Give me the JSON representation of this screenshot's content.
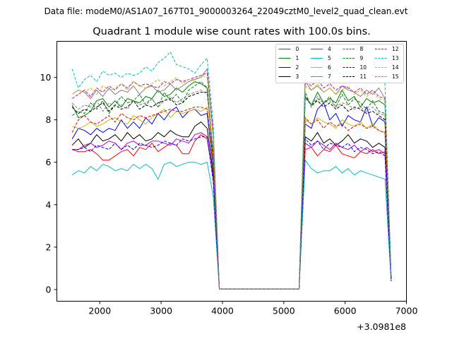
{
  "supertitle": "Data file: modeM0/AS1A07_167T01_9000003264_22049cztM0_level2_quad_clean.evt",
  "chart_data": {
    "type": "line",
    "title": "Quadrant 1 module wise count rates with 100.0s bins.",
    "xlabel": "",
    "ylabel": "",
    "x_offset_label": "+3.0981e8",
    "xlim": [
      1300,
      7000
    ],
    "ylim": [
      -0.55,
      11.7
    ],
    "xticks": [
      2000,
      3000,
      4000,
      5000,
      6000,
      7000
    ],
    "xtick_labels": [
      "2000",
      "3000",
      "4000",
      "5000",
      "6000",
      "7000"
    ],
    "yticks": [
      0,
      2,
      4,
      6,
      8,
      10
    ],
    "ytick_labels": [
      "0",
      "2",
      "4",
      "6",
      "8",
      "10"
    ],
    "grid": false,
    "legend_position": "top-right",
    "x_segment1": [
      1550,
      1650,
      1750,
      1850,
      1950,
      2050,
      2150,
      2250,
      2350,
      2450,
      2550,
      2650,
      2750,
      2850,
      2950,
      3050,
      3150,
      3250,
      3350,
      3450,
      3550,
      3650,
      3750,
      3850,
      3950
    ],
    "x_segment2": [
      5250,
      5350,
      5450,
      5550,
      5650,
      5750,
      5850,
      5950,
      6050,
      6150,
      6250,
      6350,
      6450,
      6550,
      6650,
      6750
    ],
    "gap_x": [
      4050,
      4150,
      4250,
      4350,
      4450,
      4550,
      4650,
      4750,
      4850,
      4950,
      5050,
      5150
    ],
    "series": [
      {
        "name": "0",
        "color": "#ff0000",
        "dash": "solid",
        "seg1": [
          6.6,
          6.5,
          6.5,
          6.6,
          6.4,
          6.1,
          6.1,
          6.3,
          6.5,
          6.6,
          6.3,
          6.7,
          6.6,
          6.9,
          6.5,
          6.7,
          6.9,
          6.8,
          6.4,
          6.4,
          7.0,
          7.3,
          7.1,
          5.3,
          0.02
        ],
        "seg2": [
          0.02,
          6.6,
          6.7,
          6.3,
          6.6,
          6.5,
          6.8,
          6.4,
          6.3,
          6.2,
          6.5,
          6.4,
          6.6,
          6.4,
          6.5,
          0.5
        ]
      },
      {
        "name": "1",
        "color": "#008000",
        "dash": "solid",
        "seg1": [
          8.7,
          8.1,
          8.2,
          8.4,
          8.9,
          9.0,
          8.6,
          8.9,
          8.6,
          9.0,
          8.9,
          8.8,
          9.1,
          9.0,
          9.4,
          9.1,
          9.2,
          9.5,
          9.3,
          9.6,
          9.8,
          9.7,
          9.5,
          6.2,
          0.02
        ],
        "seg2": [
          0.02,
          9.1,
          8.7,
          9.3,
          8.8,
          9.0,
          8.8,
          9.4,
          8.9,
          9.1,
          8.6,
          9.0,
          8.8,
          8.9,
          8.7,
          0.6
        ]
      },
      {
        "name": "2",
        "color": "#0000ff",
        "dash": "solid",
        "seg1": [
          7.1,
          7.6,
          7.5,
          7.3,
          7.6,
          7.4,
          7.6,
          7.5,
          8.0,
          7.6,
          7.9,
          7.6,
          8.1,
          7.8,
          8.3,
          8.0,
          8.4,
          8.6,
          8.1,
          8.4,
          8.5,
          8.2,
          8.3,
          5.8,
          0.02
        ],
        "seg2": [
          0.02,
          7.8,
          7.6,
          8.5,
          8.8,
          8.0,
          8.3,
          7.7,
          8.2,
          8.0,
          7.9,
          8.6,
          7.7,
          8.1,
          7.9,
          0.4
        ]
      },
      {
        "name": "3",
        "color": "#000000",
        "dash": "solid",
        "seg1": [
          6.8,
          7.1,
          6.7,
          6.9,
          7.3,
          7.0,
          7.1,
          7.3,
          7.0,
          7.4,
          7.1,
          7.3,
          7.0,
          7.1,
          7.4,
          7.2,
          7.5,
          7.3,
          7.2,
          7.2,
          7.7,
          7.9,
          7.6,
          5.5,
          0.02
        ],
        "seg2": [
          0.02,
          7.2,
          7.0,
          7.4,
          6.9,
          7.1,
          6.8,
          7.0,
          7.3,
          6.9,
          7.1,
          7.0,
          6.7,
          6.9,
          6.7,
          0.5
        ]
      },
      {
        "name": "4",
        "color": "#bf00bf",
        "dash": "solid",
        "seg1": [
          6.6,
          6.6,
          6.8,
          6.9,
          6.7,
          6.8,
          7.0,
          6.9,
          6.6,
          6.9,
          7.0,
          6.8,
          6.8,
          7.0,
          7.0,
          6.9,
          6.8,
          7.1,
          7.0,
          6.9,
          7.3,
          7.4,
          7.2,
          5.2,
          0.02
        ],
        "seg2": [
          0.02,
          6.9,
          6.7,
          7.0,
          6.8,
          6.6,
          6.9,
          6.7,
          6.6,
          6.8,
          6.5,
          6.7,
          6.5,
          6.6,
          6.4,
          0.5
        ]
      },
      {
        "name": "5",
        "color": "#00bfbf",
        "dash": "solid",
        "seg1": [
          5.4,
          5.6,
          5.5,
          5.8,
          5.6,
          5.9,
          5.8,
          5.6,
          5.7,
          5.6,
          5.9,
          5.7,
          5.9,
          5.7,
          5.2,
          5.9,
          6.0,
          5.8,
          5.9,
          6.0,
          6.0,
          5.9,
          6.0,
          4.4,
          0.02
        ],
        "seg2": [
          0.02,
          6.1,
          5.7,
          5.5,
          5.6,
          5.6,
          5.8,
          5.5,
          5.7,
          5.4,
          5.6,
          5.5,
          5.4,
          5.3,
          5.2,
          0.4
        ]
      },
      {
        "name": "6",
        "color": "#bfbf00",
        "dash": "solid",
        "seg1": [
          7.7,
          7.6,
          7.7,
          7.9,
          7.7,
          7.8,
          8.0,
          8.1,
          7.9,
          7.8,
          8.2,
          8.0,
          7.8,
          8.1,
          8.3,
          8.5,
          8.1,
          8.4,
          8.3,
          8.4,
          8.5,
          8.4,
          8.6,
          6.0,
          0.02
        ],
        "seg2": [
          0.02,
          8.0,
          7.8,
          8.1,
          7.9,
          7.8,
          7.6,
          8.0,
          7.8,
          7.7,
          7.9,
          7.6,
          7.8,
          7.5,
          7.4,
          0.5
        ]
      },
      {
        "name": "7",
        "color": "#808080",
        "dash": "solid",
        "seg1": [
          9.2,
          9.4,
          9.3,
          9.0,
          9.4,
          9.1,
          9.5,
          9.2,
          9.4,
          9.3,
          9.6,
          9.2,
          9.5,
          9.6,
          9.3,
          9.4,
          9.7,
          9.4,
          9.6,
          9.8,
          9.9,
          10.0,
          10.4,
          7.4,
          0.02
        ],
        "seg2": [
          0.02,
          9.8,
          9.4,
          9.6,
          9.3,
          9.5,
          9.2,
          9.6,
          9.4,
          9.3,
          9.1,
          9.4,
          9.2,
          9.5,
          9.0,
          0.6
        ]
      },
      {
        "name": "8",
        "color": "#ff0000",
        "dash": "dashed",
        "seg1": [
          7.4,
          8.0,
          8.2,
          7.9,
          7.8,
          8.0,
          8.2,
          7.9,
          8.3,
          8.1,
          8.0,
          8.2,
          8.1,
          8.2,
          8.3,
          8.4,
          8.5,
          8.4,
          8.4,
          8.5,
          8.6,
          8.6,
          8.5,
          6.1,
          0.02
        ],
        "seg2": [
          0.02,
          8.1,
          7.8,
          8.0,
          7.6,
          7.9,
          7.7,
          7.8,
          7.5,
          7.7,
          7.8,
          7.6,
          7.7,
          7.5,
          7.4,
          0.5
        ]
      },
      {
        "name": "9",
        "color": "#008000",
        "dash": "dashed",
        "seg1": [
          8.2,
          8.4,
          8.3,
          8.8,
          8.5,
          8.9,
          8.3,
          8.7,
          9.1,
          8.8,
          8.9,
          9.2,
          8.7,
          9.0,
          8.6,
          9.3,
          8.9,
          9.2,
          8.8,
          9.4,
          9.6,
          9.8,
          9.5,
          6.3,
          0.02
        ],
        "seg2": [
          0.02,
          9.3,
          8.6,
          9.0,
          8.8,
          9.1,
          8.6,
          9.2,
          8.7,
          9.0,
          8.8,
          8.5,
          8.9,
          8.4,
          8.3,
          0.6
        ]
      },
      {
        "name": "10",
        "color": "#0000ff",
        "dash": "dashed",
        "seg1": [
          6.6,
          6.6,
          6.7,
          6.5,
          6.8,
          6.7,
          6.6,
          6.9,
          6.6,
          6.8,
          6.6,
          6.9,
          6.8,
          6.7,
          6.8,
          7.0,
          6.9,
          6.8,
          7.1,
          7.0,
          7.1,
          7.2,
          7.2,
          5.1,
          0.02
        ],
        "seg2": [
          0.02,
          7.1,
          6.8,
          7.0,
          6.6,
          6.9,
          6.8,
          6.7,
          6.9,
          6.5,
          6.7,
          6.6,
          6.4,
          6.5,
          6.3,
          0.4
        ]
      },
      {
        "name": "11",
        "color": "#000000",
        "dash": "dashed",
        "seg1": [
          8.6,
          8.3,
          8.5,
          8.4,
          8.6,
          8.8,
          8.4,
          8.7,
          8.5,
          8.6,
          8.9,
          8.5,
          8.7,
          8.6,
          8.8,
          8.9,
          9.0,
          8.7,
          8.8,
          9.1,
          9.2,
          9.3,
          9.3,
          6.5,
          0.02
        ],
        "seg2": [
          0.02,
          9.1,
          8.7,
          8.9,
          8.6,
          8.8,
          8.5,
          8.7,
          8.4,
          8.6,
          8.5,
          8.3,
          8.4,
          8.2,
          8.0,
          0.6
        ]
      },
      {
        "name": "12",
        "color": "#bf00bf",
        "dash": "dashed",
        "seg1": [
          9.0,
          9.2,
          9.4,
          9.1,
          9.5,
          9.3,
          9.6,
          9.4,
          9.7,
          9.5,
          9.8,
          9.6,
          9.7,
          9.6,
          9.5,
          9.8,
          9.7,
          9.9,
          9.8,
          9.9,
          10.0,
          10.1,
          10.2,
          7.3,
          0.02
        ],
        "seg2": [
          0.02,
          9.8,
          9.6,
          9.9,
          9.5,
          9.7,
          9.4,
          9.6,
          9.5,
          9.3,
          9.5,
          9.2,
          9.4,
          9.1,
          9.0,
          0.6
        ]
      },
      {
        "name": "13",
        "color": "#00bfbf",
        "dash": "dashed",
        "seg1": [
          10.4,
          9.5,
          9.9,
          10.1,
          9.8,
          10.3,
          10.1,
          10.2,
          10.0,
          10.2,
          10.1,
          10.2,
          10.5,
          10.3,
          10.7,
          10.9,
          11.2,
          10.6,
          10.5,
          10.4,
          10.2,
          10.6,
          10.9,
          7.8,
          0.02
        ],
        "seg2": [
          0.02,
          10.4,
          10.0,
          10.3,
          10.6,
          10.2,
          10.4,
          10.1,
          10.3,
          10.0,
          10.2,
          9.9,
          10.1,
          9.8,
          9.7,
          0.7
        ]
      },
      {
        "name": "14",
        "color": "#bfbf00",
        "dash": "dashed",
        "seg1": [
          9.2,
          9.4,
          9.3,
          9.5,
          9.2,
          9.6,
          9.4,
          9.5,
          9.7,
          9.4,
          9.8,
          9.6,
          9.5,
          9.7,
          9.9,
          9.6,
          9.8,
          10.0,
          9.7,
          9.9,
          9.9,
          10.1,
          10.0,
          7.1,
          0.02
        ],
        "seg2": [
          0.02,
          9.6,
          9.4,
          9.7,
          9.3,
          9.5,
          9.2,
          9.4,
          9.6,
          9.2,
          9.4,
          9.1,
          9.3,
          9.0,
          8.9,
          0.6
        ]
      },
      {
        "name": "15",
        "color": "#808080",
        "dash": "dashed",
        "seg1": [
          8.8,
          8.5,
          8.7,
          8.6,
          8.9,
          8.4,
          8.8,
          8.6,
          8.7,
          8.5,
          8.9,
          8.7,
          8.8,
          9.0,
          8.6,
          8.9,
          9.1,
          8.8,
          9.0,
          9.2,
          9.3,
          9.4,
          9.2,
          6.6,
          0.02
        ],
        "seg2": [
          0.02,
          9.0,
          8.7,
          9.1,
          8.8,
          8.9,
          8.6,
          8.8,
          8.7,
          8.5,
          8.6,
          8.4,
          8.6,
          8.3,
          8.2,
          0.6
        ]
      }
    ]
  }
}
